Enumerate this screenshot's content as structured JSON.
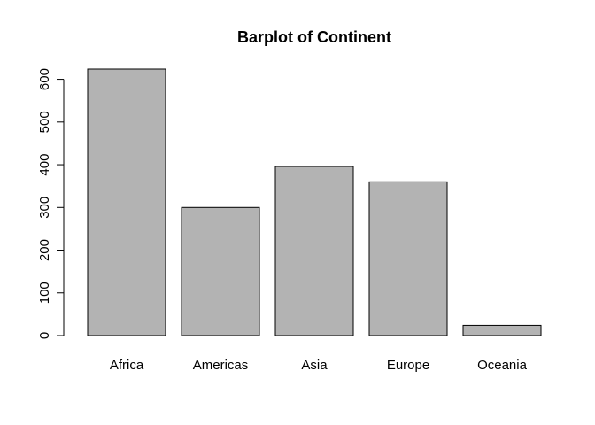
{
  "chart_data": {
    "type": "bar",
    "title": "Barplot of Continent",
    "xlabel": "",
    "ylabel": "",
    "categories": [
      "Africa",
      "Americas",
      "Asia",
      "Europe",
      "Oceania"
    ],
    "values": [
      624,
      300,
      396,
      360,
      24
    ],
    "ylim": [
      0,
      624
    ],
    "yticks": [
      0,
      100,
      200,
      300,
      400,
      500,
      600
    ],
    "grid": false,
    "bar_color": "#b3b3b3",
    "stroke_color": "#000000"
  }
}
